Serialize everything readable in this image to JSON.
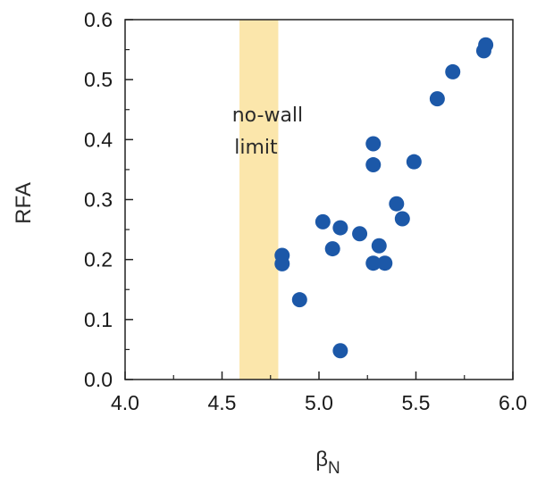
{
  "chart_data": {
    "type": "scatter",
    "xlabel_main": "β",
    "xlabel_sub": "N",
    "ylabel": "RFA",
    "xlim": [
      4.0,
      6.0
    ],
    "ylim": [
      0.0,
      0.6
    ],
    "x_ticks": [
      "4.0",
      "4.5",
      "5.0",
      "5.5",
      "6.0"
    ],
    "y_ticks": [
      "0.0",
      "0.1",
      "0.2",
      "0.3",
      "0.4",
      "0.5",
      "0.6"
    ],
    "x_tick_values": [
      4.0,
      4.5,
      5.0,
      5.5,
      6.0
    ],
    "y_tick_values": [
      0.0,
      0.1,
      0.2,
      0.3,
      0.4,
      0.5,
      0.6
    ],
    "grid": false,
    "band": {
      "x_from": 4.59,
      "x_to": 4.79,
      "color": "#fbe6ab"
    },
    "annotation_lines": [
      "no-wall",
      "limit"
    ],
    "marker_color": "#1c58a8",
    "points": [
      {
        "x": 4.81,
        "y": 0.207
      },
      {
        "x": 4.81,
        "y": 0.193
      },
      {
        "x": 4.9,
        "y": 0.133
      },
      {
        "x": 5.02,
        "y": 0.263
      },
      {
        "x": 5.07,
        "y": 0.218
      },
      {
        "x": 5.11,
        "y": 0.253
      },
      {
        "x": 5.11,
        "y": 0.048
      },
      {
        "x": 5.21,
        "y": 0.243
      },
      {
        "x": 5.28,
        "y": 0.393
      },
      {
        "x": 5.28,
        "y": 0.358
      },
      {
        "x": 5.28,
        "y": 0.194
      },
      {
        "x": 5.31,
        "y": 0.223
      },
      {
        "x": 5.34,
        "y": 0.194
      },
      {
        "x": 5.4,
        "y": 0.293
      },
      {
        "x": 5.43,
        "y": 0.268
      },
      {
        "x": 5.49,
        "y": 0.363
      },
      {
        "x": 5.61,
        "y": 0.468
      },
      {
        "x": 5.69,
        "y": 0.513
      },
      {
        "x": 5.85,
        "y": 0.548
      },
      {
        "x": 5.86,
        "y": 0.558
      }
    ]
  }
}
